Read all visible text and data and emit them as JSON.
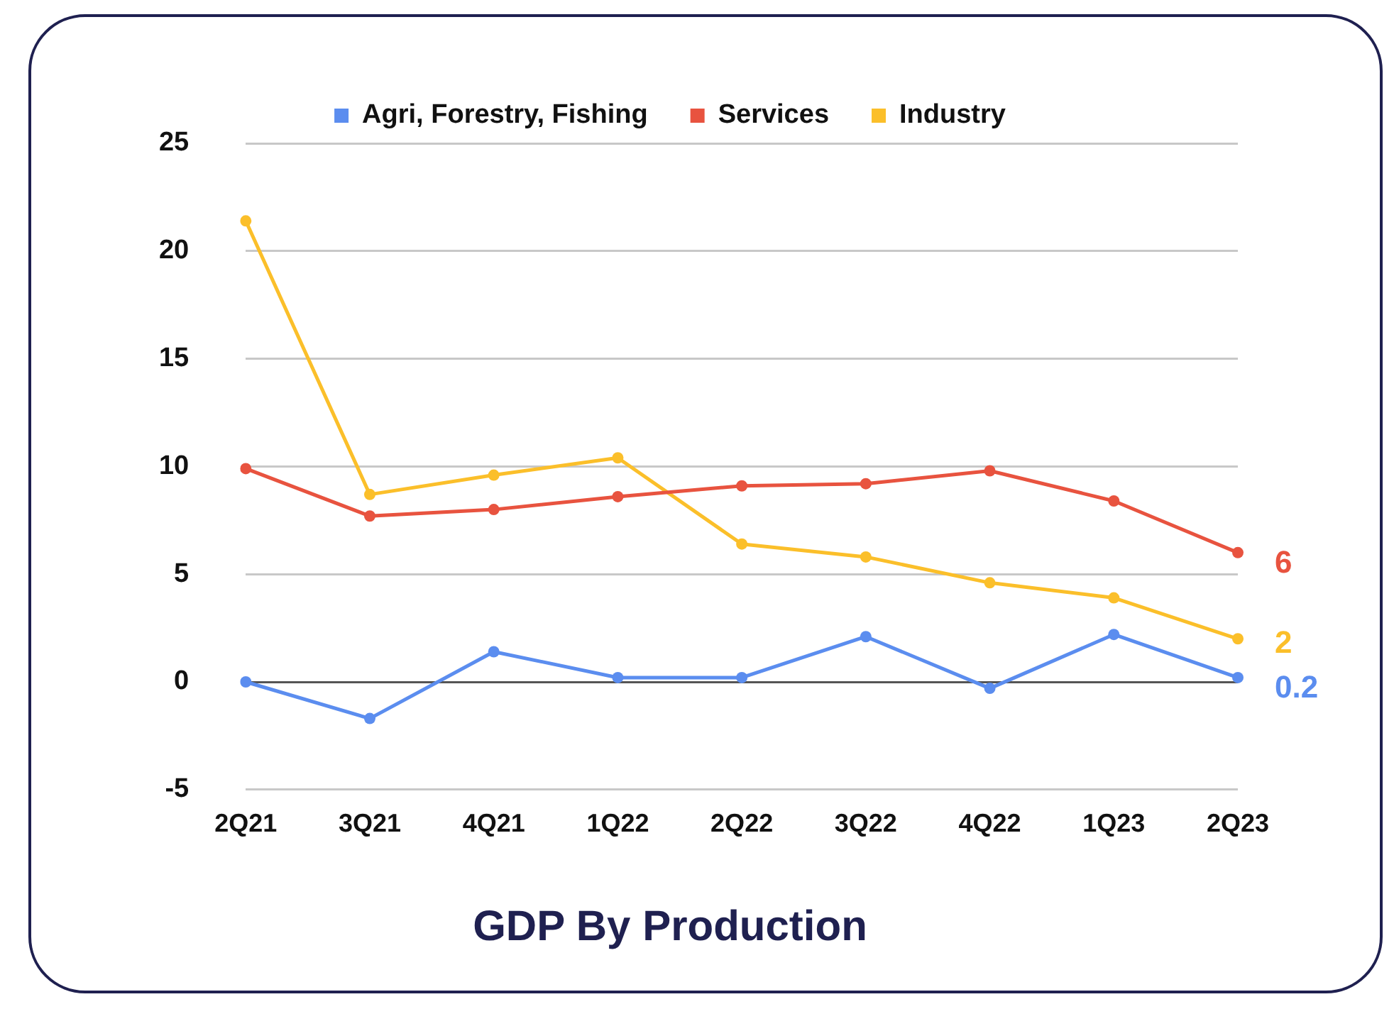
{
  "chart_data": {
    "type": "line",
    "title": "GDP By Production",
    "categories": [
      "2Q21",
      "3Q21",
      "4Q21",
      "1Q22",
      "2Q22",
      "3Q22",
      "4Q22",
      "1Q23",
      "2Q23"
    ],
    "series": [
      {
        "name": "Agri, Forestry, Fishing",
        "color": "#5b8def",
        "values": [
          0,
          -1.7,
          1.4,
          0.2,
          0.2,
          2.1,
          -0.3,
          2.2,
          0.2
        ],
        "value_labels": [
          null,
          null,
          null,
          null,
          null,
          null,
          null,
          null,
          "0.2"
        ]
      },
      {
        "name": "Services",
        "color": "#e8533f",
        "values": [
          9.9,
          7.7,
          8.0,
          8.6,
          9.1,
          9.2,
          9.8,
          8.4,
          6.0
        ],
        "value_labels": [
          null,
          null,
          null,
          null,
          null,
          null,
          null,
          null,
          "6"
        ]
      },
      {
        "name": "Industry",
        "color": "#fbbf2a",
        "values": [
          21.4,
          8.7,
          9.6,
          10.4,
          6.4,
          5.8,
          4.6,
          3.9,
          2.0
        ],
        "value_labels": [
          null,
          null,
          null,
          null,
          null,
          null,
          null,
          null,
          "2"
        ]
      }
    ],
    "ylim": [
      -5,
      25
    ],
    "yticks": [
      -5,
      0,
      5,
      10,
      15,
      20,
      25
    ],
    "grid": "y",
    "legend": "top",
    "marker": "circle",
    "line_style": "solid"
  }
}
